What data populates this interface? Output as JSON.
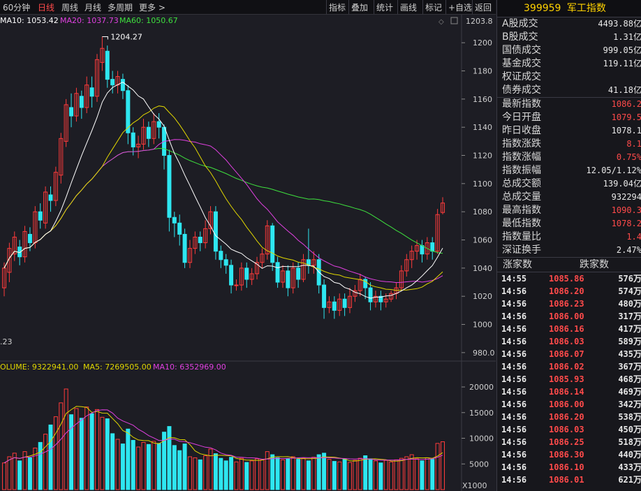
{
  "toolbar": {
    "left": [
      {
        "label": "60分钟",
        "active": false
      },
      {
        "label": "日线",
        "active": true
      },
      {
        "label": "周线",
        "active": false
      },
      {
        "label": "月线",
        "active": false
      },
      {
        "label": "多周期",
        "active": false
      },
      {
        "label": "更多 >",
        "active": false
      }
    ],
    "right": [
      "指标",
      "叠加",
      "统计",
      "画线",
      "标记",
      "+自选",
      "返回"
    ]
  },
  "ma_legend": {
    "ma10": "MA10: 1053.42",
    "ma20": "MA20: 1037.73",
    "ma60": "MA60: 1050.67"
  },
  "price_axis_top": "1203.8",
  "high_label": "1204.27",
  "low_label": ".23",
  "volume_legend": {
    "volume": "OLUME: 9322941.00",
    "ma5": "MA5: 7269505.00",
    "ma10": "MA10: 6352969.00"
  },
  "volume_unit": "X1000",
  "colors": {
    "up": "#ff3b3b",
    "down": "#2ee6f0",
    "ma10": "#ffffff",
    "ma20": "#e0d600",
    "ma30": "#e040e0",
    "ma60": "#3ee03e"
  },
  "chart_data": {
    "type": "candlestick",
    "y_ticks": [
      980,
      1000,
      1020,
      1040,
      1060,
      1080,
      1100,
      1120,
      1140,
      1160,
      1180,
      1200
    ],
    "ylim": [
      972,
      1210
    ],
    "volume_ticks": [
      5000,
      10000,
      15000,
      20000
    ],
    "volume_ylim": [
      0,
      21500
    ],
    "candles": [
      [
        1026,
        1040,
        1020,
        1044
      ],
      [
        1037,
        1054,
        1030,
        1058
      ],
      [
        1050,
        1062,
        1045,
        1066
      ],
      [
        1055,
        1048,
        1042,
        1060
      ],
      [
        1048,
        1066,
        1044,
        1070
      ],
      [
        1064,
        1058,
        1052,
        1069
      ],
      [
        1058,
        1080,
        1054,
        1084
      ],
      [
        1080,
        1074,
        1068,
        1086
      ],
      [
        1072,
        1094,
        1068,
        1098
      ],
      [
        1092,
        1088,
        1080,
        1098
      ],
      [
        1088,
        1108,
        1084,
        1112
      ],
      [
        1106,
        1132,
        1100,
        1136
      ],
      [
        1130,
        1156,
        1126,
        1160
      ],
      [
        1154,
        1148,
        1140,
        1164
      ],
      [
        1148,
        1164,
        1144,
        1168
      ],
      [
        1162,
        1154,
        1146,
        1166
      ],
      [
        1154,
        1170,
        1150,
        1176
      ],
      [
        1168,
        1162,
        1154,
        1176
      ],
      [
        1162,
        1188,
        1158,
        1192
      ],
      [
        1186,
        1196,
        1180,
        1204.27
      ],
      [
        1194,
        1174,
        1168,
        1198
      ],
      [
        1174,
        1170,
        1164,
        1180
      ],
      [
        1170,
        1176,
        1164,
        1180
      ],
      [
        1174,
        1166,
        1160,
        1178
      ],
      [
        1166,
        1136,
        1128,
        1170
      ],
      [
        1136,
        1126,
        1120,
        1140
      ],
      [
        1126,
        1128,
        1118,
        1134
      ],
      [
        1128,
        1140,
        1124,
        1146
      ],
      [
        1140,
        1132,
        1126,
        1144
      ],
      [
        1132,
        1144,
        1128,
        1150
      ],
      [
        1144,
        1140,
        1132,
        1150
      ],
      [
        1140,
        1120,
        1110,
        1142
      ],
      [
        1120,
        1076,
        1066,
        1124
      ],
      [
        1076,
        1072,
        1062,
        1080
      ],
      [
        1072,
        1064,
        1056,
        1078
      ],
      [
        1064,
        1044,
        1040,
        1068
      ],
      [
        1044,
        1054,
        1040,
        1060
      ],
      [
        1054,
        1062,
        1050,
        1066
      ],
      [
        1062,
        1058,
        1052,
        1066
      ],
      [
        1058,
        1068,
        1054,
        1074
      ],
      [
        1068,
        1080,
        1064,
        1084
      ],
      [
        1080,
        1052,
        1046,
        1084
      ],
      [
        1052,
        1046,
        1040,
        1056
      ],
      [
        1046,
        1042,
        1036,
        1050
      ],
      [
        1042,
        1028,
        1022,
        1046
      ],
      [
        1028,
        1028,
        1024,
        1032
      ],
      [
        1028,
        1040,
        1024,
        1044
      ],
      [
        1040,
        1032,
        1026,
        1044
      ],
      [
        1032,
        1036,
        1028,
        1040
      ],
      [
        1036,
        1044,
        1032,
        1048
      ],
      [
        1044,
        1050,
        1040,
        1054
      ],
      [
        1050,
        1070,
        1046,
        1074
      ],
      [
        1070,
        1044,
        1038,
        1072
      ],
      [
        1044,
        1030,
        1026,
        1048
      ],
      [
        1030,
        1038,
        1026,
        1042
      ],
      [
        1038,
        1026,
        1020,
        1042
      ],
      [
        1026,
        1040,
        1022,
        1044
      ],
      [
        1040,
        1032,
        1026,
        1044
      ],
      [
        1032,
        1046,
        1030,
        1050
      ],
      [
        1046,
        1042,
        1036,
        1068
      ],
      [
        1042,
        1046,
        1036,
        1052
      ],
      [
        1046,
        1028,
        1022,
        1050
      ],
      [
        1028,
        1012,
        1004,
        1032
      ],
      [
        1012,
        1016,
        1008,
        1020
      ],
      [
        1016,
        1010,
        1004,
        1020
      ],
      [
        1010,
        1018,
        1006,
        1022
      ],
      [
        1018,
        1012,
        1006,
        1022
      ],
      [
        1012,
        1020,
        1008,
        1026
      ],
      [
        1020,
        1024,
        1016,
        1028
      ],
      [
        1024,
        1032,
        1020,
        1036
      ],
      [
        1032,
        1026,
        1018,
        1034
      ],
      [
        1026,
        1016,
        1010,
        1030
      ],
      [
        1016,
        1020,
        1012,
        1024
      ],
      [
        1020,
        1016,
        1010,
        1024
      ],
      [
        1016,
        1018,
        1012,
        1022
      ],
      [
        1018,
        1022,
        1016,
        1024
      ],
      [
        1022,
        1026,
        1018,
        1030
      ],
      [
        1026,
        1038,
        1024,
        1042
      ],
      [
        1038,
        1046,
        1034,
        1050
      ],
      [
        1046,
        1052,
        1040,
        1056
      ],
      [
        1052,
        1056,
        1046,
        1060
      ],
      [
        1056,
        1050,
        1044,
        1060
      ],
      [
        1050,
        1058,
        1046,
        1062
      ],
      [
        1058,
        1052,
        1046,
        1062
      ],
      [
        1052,
        1078,
        1050,
        1082
      ],
      [
        1079.5,
        1086.2,
        1078.2,
        1090.3
      ]
    ],
    "volumes": [
      5200,
      6400,
      7100,
      5600,
      7400,
      6200,
      8100,
      9200,
      10800,
      12600,
      14200,
      16900,
      19600,
      14600,
      15800,
      13900,
      16100,
      14800,
      15600,
      14100,
      13800,
      10900,
      9800,
      8900,
      11800,
      9600,
      8300,
      9200,
      8800,
      9400,
      9000,
      11200,
      12300,
      8600,
      7600,
      8900,
      6400,
      6200,
      5800,
      6600,
      7900,
      7000,
      6100,
      5600,
      6300,
      5400,
      6100,
      5300,
      5600,
      6000,
      5800,
      7400,
      6800,
      6200,
      5800,
      6000,
      6400,
      5900,
      6100,
      5600,
      6300,
      6800,
      7100,
      5900,
      5500,
      5400,
      5900,
      5300,
      5700,
      6100,
      6600,
      6000,
      5600,
      5200,
      5700,
      5400,
      5800,
      6100,
      6400,
      6800,
      6000,
      5600,
      6200,
      5900,
      9000,
      9322.9
    ]
  },
  "sidebar": {
    "code": "399959",
    "name": "军工指数",
    "volume_rows": [
      {
        "label": "A股成交",
        "value": "4493.88亿"
      },
      {
        "label": "B股成交",
        "value": "1.31亿"
      },
      {
        "label": "国债成交",
        "value": "999.05亿"
      },
      {
        "label": "基金成交",
        "value": "119.11亿"
      },
      {
        "label": "权证成交",
        "value": ""
      },
      {
        "label": "债券成交",
        "value": "41.18亿"
      }
    ],
    "quote_rows": [
      {
        "label": "最新指数",
        "value": "1086.2",
        "red": true
      },
      {
        "label": "今日开盘",
        "value": "1079.5",
        "red": true
      },
      {
        "label": "昨日收盘",
        "value": "1078.1",
        "red": false
      },
      {
        "label": "指数涨跌",
        "value": "8.1",
        "red": true
      },
      {
        "label": "指数涨幅",
        "value": "0.75%",
        "red": true
      },
      {
        "label": "指数振幅",
        "value": "12.05/1.12%",
        "red": false
      },
      {
        "label": "总成交额",
        "value": "139.04亿",
        "red": false
      },
      {
        "label": "总成交量",
        "value": "932294",
        "red": false
      },
      {
        "label": "最高指数",
        "value": "1090.3",
        "red": true
      },
      {
        "label": "最低指数",
        "value": "1078.2",
        "red": true
      },
      {
        "label": "指数量比",
        "value": "1.4",
        "red": true
      },
      {
        "label": "深证换手",
        "value": "2.47%",
        "red": false
      }
    ],
    "updown": {
      "up_label": "涨家数",
      "down_label": "跌家数"
    },
    "ticks": [
      {
        "time": "14:55",
        "price": "1085.86",
        "vol": "576万"
      },
      {
        "time": "14:56",
        "price": "1086.20",
        "vol": "574万"
      },
      {
        "time": "14:56",
        "price": "1086.23",
        "vol": "480万"
      },
      {
        "time": "14:56",
        "price": "1086.00",
        "vol": "317万"
      },
      {
        "time": "14:56",
        "price": "1086.16",
        "vol": "417万"
      },
      {
        "time": "14:56",
        "price": "1086.03",
        "vol": "589万"
      },
      {
        "time": "14:56",
        "price": "1086.07",
        "vol": "435万"
      },
      {
        "time": "14:56",
        "price": "1086.02",
        "vol": "367万"
      },
      {
        "time": "14:56",
        "price": "1085.93",
        "vol": "468万"
      },
      {
        "time": "14:56",
        "price": "1086.14",
        "vol": "469万"
      },
      {
        "time": "14:56",
        "price": "1086.00",
        "vol": "342万"
      },
      {
        "time": "14:56",
        "price": "1086.20",
        "vol": "538万"
      },
      {
        "time": "14:56",
        "price": "1086.03",
        "vol": "450万"
      },
      {
        "time": "14:56",
        "price": "1086.25",
        "vol": "518万"
      },
      {
        "time": "14:56",
        "price": "1086.30",
        "vol": "440万"
      },
      {
        "time": "14:56",
        "price": "1086.10",
        "vol": "433万"
      },
      {
        "time": "14:56",
        "price": "1086.01",
        "vol": "621万"
      }
    ]
  }
}
